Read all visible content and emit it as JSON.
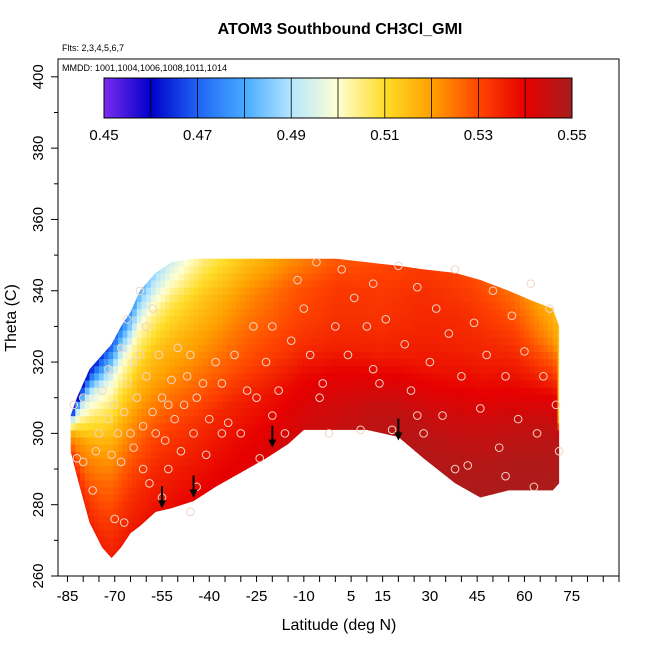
{
  "chart_data": {
    "type": "heatmap",
    "title": "ATOM3 Southbound CH3Cl_GMI",
    "flights_label": "Flts: 2,3,4,5,6,7",
    "mmdd_label": "MMDD: 1001,1004,1006,1008,1011,1014",
    "xlabel": "Latitude (deg N)",
    "ylabel": "Theta (C)",
    "xlim": [
      -88,
      90
    ],
    "ylim": [
      260,
      405
    ],
    "x_ticks": [
      -85,
      -70,
      -55,
      -40,
      -25,
      -10,
      5,
      15,
      30,
      45,
      60,
      75
    ],
    "x_minor_step": 5,
    "y_ticks": [
      260,
      280,
      300,
      320,
      340,
      360,
      380,
      400
    ],
    "colorbar": {
      "range": [
        0.45,
        0.55
      ],
      "ticks": [
        "0.45",
        "0.47",
        "0.49",
        "0.51",
        "0.53",
        "0.55"
      ],
      "colors": [
        "#7a2cf0",
        "#0000c8",
        "#1e64f5",
        "#46aaff",
        "#b4e6ff",
        "#ffffd2",
        "#ffdc28",
        "#ffa000",
        "#ff4600",
        "#e60000",
        "#a51e1e"
      ]
    },
    "field_boundary": {
      "lat": [
        -84,
        -82,
        -78,
        -74,
        -71,
        -68,
        -65,
        -62,
        -57,
        -52,
        -45,
        -38,
        -30,
        -22,
        -15,
        -10,
        0,
        10,
        20,
        28,
        38,
        46,
        55,
        63,
        69,
        71
      ],
      "theta_top": [
        305,
        310,
        318,
        322,
        325,
        330,
        334,
        340,
        345,
        348,
        349,
        349,
        349,
        349,
        349,
        349,
        349,
        348,
        347,
        346,
        345,
        343,
        340,
        337,
        335,
        330
      ],
      "theta_bottom": [
        295,
        288,
        275,
        268,
        265,
        268,
        272,
        274,
        278,
        279,
        281,
        285,
        289,
        293,
        297,
        301,
        301,
        301,
        299,
        293,
        286,
        282,
        284,
        284,
        284,
        286
      ]
    },
    "field_values": [
      [
        0.535,
        0.536,
        0.538,
        0.54,
        0.541,
        0.543,
        0.545,
        0.547,
        0.548,
        0.549,
        0.549,
        0.549
      ],
      [
        0.53,
        0.532,
        0.535,
        0.537,
        0.539,
        0.541,
        0.543,
        0.545,
        0.546,
        0.547,
        0.548,
        0.548
      ],
      [
        0.524,
        0.527,
        0.53,
        0.533,
        0.536,
        0.538,
        0.54,
        0.54,
        0.542,
        0.544,
        0.545,
        0.546
      ],
      [
        0.52,
        0.52,
        0.522,
        0.526,
        0.53,
        0.533,
        0.535,
        0.535,
        0.537,
        0.539,
        0.54,
        0.541
      ],
      [
        0.505,
        0.51,
        0.515,
        0.52,
        0.526,
        0.53,
        0.533,
        0.533,
        0.535,
        0.535,
        0.535,
        0.53
      ],
      [
        0.49,
        0.498,
        0.505,
        0.514,
        0.522,
        0.528,
        0.532,
        0.532,
        0.534,
        0.533,
        0.53,
        0.52
      ],
      [
        0.455,
        0.47,
        0.49,
        0.505,
        0.515,
        0.522,
        0.528,
        0.53,
        0.532,
        0.53,
        0.525,
        0.515
      ]
    ],
    "data_points": [
      [
        -83,
        308
      ],
      [
        -82,
        293
      ],
      [
        -80,
        292
      ],
      [
        -77,
        284
      ],
      [
        -75,
        300
      ],
      [
        -74,
        312
      ],
      [
        -72,
        304
      ],
      [
        -71,
        294
      ],
      [
        -70,
        308
      ],
      [
        -70,
        276
      ],
      [
        -69,
        300
      ],
      [
        -68,
        292
      ],
      [
        -68,
        324
      ],
      [
        -67,
        306
      ],
      [
        -67,
        275
      ],
      [
        -66,
        314
      ],
      [
        -66,
        332
      ],
      [
        -65,
        300
      ],
      [
        -64,
        296
      ],
      [
        -64,
        320
      ],
      [
        -63,
        310
      ],
      [
        -62,
        322
      ],
      [
        -62,
        340
      ],
      [
        -61,
        302
      ],
      [
        -61,
        290
      ],
      [
        -60,
        316
      ],
      [
        -59,
        286
      ],
      [
        -58,
        306
      ],
      [
        -58,
        335
      ],
      [
        -57,
        300
      ],
      [
        -56,
        322
      ],
      [
        -55,
        310
      ],
      [
        -55,
        282
      ],
      [
        -54,
        298
      ],
      [
        -53,
        308
      ],
      [
        -52,
        315
      ],
      [
        -51,
        304
      ],
      [
        -50,
        324
      ],
      [
        -49,
        295
      ],
      [
        -48,
        308
      ],
      [
        -47,
        316
      ],
      [
        -46,
        278
      ],
      [
        -46,
        322
      ],
      [
        -45,
        300
      ],
      [
        -44,
        310
      ],
      [
        -42,
        314
      ],
      [
        -41,
        294
      ],
      [
        -40,
        304
      ],
      [
        -38,
        320
      ],
      [
        -36,
        314
      ],
      [
        -34,
        303
      ],
      [
        -32,
        322
      ],
      [
        -30,
        300
      ],
      [
        -28,
        312
      ],
      [
        -26,
        330
      ],
      [
        -25,
        310
      ],
      [
        -24,
        293
      ],
      [
        -22,
        320
      ],
      [
        -20,
        330
      ],
      [
        -18,
        312
      ],
      [
        -16,
        300
      ],
      [
        -14,
        326
      ],
      [
        -12,
        343
      ],
      [
        -10,
        335
      ],
      [
        -8,
        322
      ],
      [
        -6,
        348
      ],
      [
        -4,
        314
      ],
      [
        -2,
        300
      ],
      [
        0,
        330
      ],
      [
        2,
        346
      ],
      [
        4,
        322
      ],
      [
        6,
        338
      ],
      [
        8,
        301
      ],
      [
        10,
        330
      ],
      [
        12,
        342
      ],
      [
        14,
        314
      ],
      [
        16,
        332
      ],
      [
        18,
        301
      ],
      [
        20,
        347
      ],
      [
        22,
        325
      ],
      [
        24,
        312
      ],
      [
        26,
        341
      ],
      [
        28,
        300
      ],
      [
        30,
        320
      ],
      [
        32,
        335
      ],
      [
        34,
        305
      ],
      [
        36,
        328
      ],
      [
        38,
        346
      ],
      [
        40,
        316
      ],
      [
        42,
        291
      ],
      [
        44,
        331
      ],
      [
        46,
        307
      ],
      [
        48,
        322
      ],
      [
        50,
        340
      ],
      [
        52,
        296
      ],
      [
        54,
        316
      ],
      [
        56,
        333
      ],
      [
        58,
        304
      ],
      [
        60,
        323
      ],
      [
        62,
        342
      ],
      [
        64,
        300
      ],
      [
        66,
        316
      ],
      [
        68,
        335
      ],
      [
        70,
        308
      ],
      [
        71,
        295
      ],
      [
        -80,
        310
      ],
      [
        -76,
        295
      ],
      [
        -72,
        318
      ],
      [
        -60,
        330
      ],
      [
        -53,
        290
      ],
      [
        -44,
        285
      ],
      [
        -36,
        300
      ],
      [
        -20,
        305
      ],
      [
        -5,
        310
      ],
      [
        12,
        318
      ],
      [
        26,
        305
      ],
      [
        38,
        290
      ],
      [
        54,
        288
      ],
      [
        63,
        285
      ]
    ],
    "arrows": [
      {
        "lat": -55,
        "theta": 279
      },
      {
        "lat": -45,
        "theta": 282
      },
      {
        "lat": -20,
        "theta": 296
      },
      {
        "lat": 20,
        "theta": 298
      }
    ]
  }
}
